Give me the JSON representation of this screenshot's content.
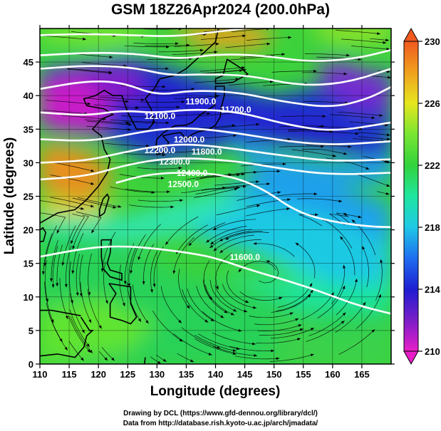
{
  "title": "GSM 18Z26Apr2024 (200.0hPa)",
  "chart_data": {
    "type": "heatmap",
    "title": "GSM 18Z26Apr2024 (200.0hPa)",
    "xlabel": "Longitude (degrees)",
    "ylabel": "Latitude  (degrees)",
    "xlim": [
      110,
      170
    ],
    "ylim": [
      0,
      50
    ],
    "xticks": [
      "110",
      "115",
      "120",
      "125",
      "130",
      "135",
      "140",
      "145",
      "150",
      "155",
      "160",
      "165"
    ],
    "yticks": [
      "0",
      "5",
      "10",
      "15",
      "20",
      "25",
      "30",
      "35",
      "40",
      "45"
    ],
    "grid": true,
    "colorbar": {
      "min": 210,
      "max": 230,
      "ticks": [
        "210",
        "214",
        "218",
        "222",
        "226",
        "230"
      ],
      "colors": [
        "#e81ec8",
        "#7a1ec8",
        "#1e1ed2",
        "#1e6ef0",
        "#1ec8e6",
        "#1ee6a0",
        "#32d23c",
        "#78e632",
        "#e6e61e",
        "#f0a01e",
        "#f05a1e"
      ]
    },
    "contours": [
      {
        "label": "11600.0",
        "lon": 145,
        "lat": 15.5
      },
      {
        "label": "11700.0",
        "lon": 143.5,
        "lat": 37.5
      },
      {
        "label": "11800.0",
        "lon": 138.5,
        "lat": 31.2
      },
      {
        "label": "11900.0",
        "lon": 137.5,
        "lat": 38.7
      },
      {
        "label": "12000.0",
        "lon": 135.5,
        "lat": 33.0
      },
      {
        "label": "12100.0",
        "lon": 130.5,
        "lat": 36.5
      },
      {
        "label": "12200.0",
        "lon": 130.5,
        "lat": 31.4
      },
      {
        "label": "12300.0",
        "lon": 133,
        "lat": 29.7
      },
      {
        "label": "12400.0",
        "lon": 136,
        "lat": 28.0
      },
      {
        "label": "12500.0",
        "lon": 134.5,
        "lat": 26.4
      }
    ],
    "credits": [
      "Drawing by DCL (https://www.gfd-dennou.org/library/dcl/)",
      "Data from http://database.rish.kyoto-u.ac.jp/arch/jmadata/"
    ]
  }
}
